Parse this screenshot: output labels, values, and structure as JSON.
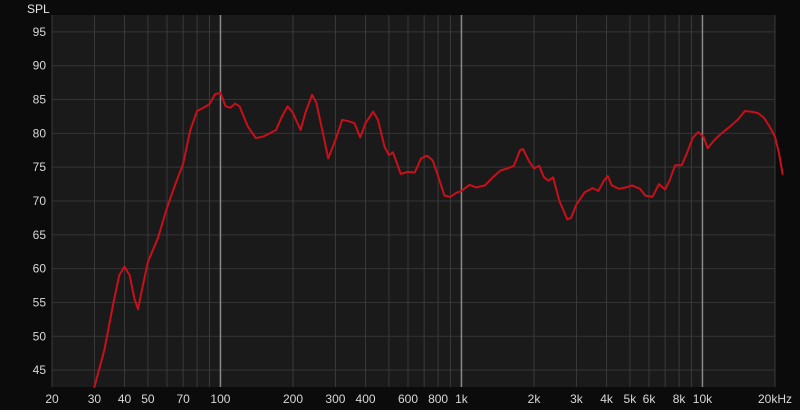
{
  "chart_data": {
    "type": "line",
    "title": "",
    "ylabel": "SPL",
    "xlabel": "",
    "x_scale": "log",
    "xlim": [
      20,
      20000
    ],
    "ylim": [
      42.5,
      97.5
    ],
    "grid": true,
    "y_ticks": [
      45,
      50,
      55,
      60,
      65,
      70,
      75,
      80,
      85,
      90,
      95
    ],
    "y_tick_labels": [
      "45",
      "50",
      "55",
      "60",
      "65",
      "70",
      "75",
      "80",
      "85",
      "90",
      "95"
    ],
    "x_ticks": [
      20,
      30,
      40,
      50,
      70,
      100,
      200,
      300,
      400,
      600,
      800,
      1000,
      2000,
      3000,
      4000,
      5000,
      6000,
      8000,
      10000,
      20000
    ],
    "x_tick_labels": [
      "20",
      "30",
      "40",
      "50",
      "70",
      "100",
      "200",
      "300",
      "400",
      "600",
      "800",
      "1k",
      "2k",
      "3k",
      "4k",
      "5k",
      "6k",
      "8k",
      "10k",
      "20kHz"
    ],
    "line_color": "#c8101a",
    "series": [
      {
        "values": [
          [
            30,
            42.5
          ],
          [
            33,
            48
          ],
          [
            36,
            55
          ],
          [
            38,
            59
          ],
          [
            40,
            60.3
          ],
          [
            42,
            59
          ],
          [
            44,
            55.5
          ],
          [
            45.5,
            54
          ],
          [
            47,
            56.5
          ],
          [
            50,
            61
          ],
          [
            55,
            64.5
          ],
          [
            60,
            69
          ],
          [
            65,
            72.5
          ],
          [
            70,
            75.5
          ],
          [
            75,
            80.5
          ],
          [
            80,
            83.3
          ],
          [
            85,
            83.8
          ],
          [
            90,
            84.3
          ],
          [
            95,
            85.8
          ],
          [
            100,
            86
          ],
          [
            105,
            84
          ],
          [
            110,
            83.8
          ],
          [
            115,
            84.4
          ],
          [
            120,
            84
          ],
          [
            130,
            81
          ],
          [
            140,
            79.3
          ],
          [
            150,
            79.5
          ],
          [
            160,
            80
          ],
          [
            170,
            80.5
          ],
          [
            180,
            82.5
          ],
          [
            190,
            84
          ],
          [
            200,
            83
          ],
          [
            215,
            80.5
          ],
          [
            225,
            83
          ],
          [
            240,
            85.7
          ],
          [
            250,
            84.5
          ],
          [
            270,
            79
          ],
          [
            280,
            76.3
          ],
          [
            300,
            79
          ],
          [
            320,
            82
          ],
          [
            340,
            81.8
          ],
          [
            360,
            81.5
          ],
          [
            380,
            79.4
          ],
          [
            400,
            81.5
          ],
          [
            430,
            83.2
          ],
          [
            450,
            82
          ],
          [
            480,
            78
          ],
          [
            500,
            76.8
          ],
          [
            520,
            77.2
          ],
          [
            560,
            74
          ],
          [
            600,
            74.3
          ],
          [
            640,
            74.2
          ],
          [
            680,
            76.3
          ],
          [
            720,
            76.7
          ],
          [
            760,
            76
          ],
          [
            800,
            73.7
          ],
          [
            850,
            70.8
          ],
          [
            900,
            70.6
          ],
          [
            950,
            71.2
          ],
          [
            1000,
            71.5
          ],
          [
            1080,
            72.4
          ],
          [
            1150,
            72
          ],
          [
            1250,
            72.3
          ],
          [
            1350,
            73.5
          ],
          [
            1450,
            74.5
          ],
          [
            1550,
            74.8
          ],
          [
            1650,
            75.2
          ],
          [
            1750,
            77.5
          ],
          [
            1800,
            77.7
          ],
          [
            1900,
            76
          ],
          [
            2000,
            74.8
          ],
          [
            2100,
            75.2
          ],
          [
            2200,
            73.5
          ],
          [
            2300,
            73
          ],
          [
            2400,
            73.5
          ],
          [
            2550,
            70
          ],
          [
            2750,
            67.3
          ],
          [
            2850,
            67.5
          ],
          [
            3000,
            69.5
          ],
          [
            3250,
            71.3
          ],
          [
            3500,
            71.9
          ],
          [
            3700,
            71.5
          ],
          [
            3900,
            73
          ],
          [
            4050,
            73.7
          ],
          [
            4200,
            72.3
          ],
          [
            4500,
            71.8
          ],
          [
            4800,
            72
          ],
          [
            5100,
            72.3
          ],
          [
            5500,
            71.8
          ],
          [
            5800,
            70.8
          ],
          [
            6200,
            70.6
          ],
          [
            6600,
            72.5
          ],
          [
            7000,
            71.7
          ],
          [
            7300,
            73
          ],
          [
            7700,
            75.3
          ],
          [
            8200,
            75.3
          ],
          [
            8600,
            77
          ],
          [
            9100,
            79.3
          ],
          [
            9600,
            80.2
          ],
          [
            10100,
            79.5
          ],
          [
            10500,
            77.8
          ],
          [
            11200,
            79
          ],
          [
            12000,
            80
          ],
          [
            13000,
            81
          ],
          [
            14000,
            82
          ],
          [
            15000,
            83.3
          ],
          [
            16000,
            83.2
          ],
          [
            17000,
            83
          ],
          [
            18000,
            82.3
          ],
          [
            19000,
            81
          ],
          [
            20000,
            79.5
          ],
          [
            20800,
            77
          ],
          [
            21500,
            74
          ]
        ]
      }
    ]
  }
}
